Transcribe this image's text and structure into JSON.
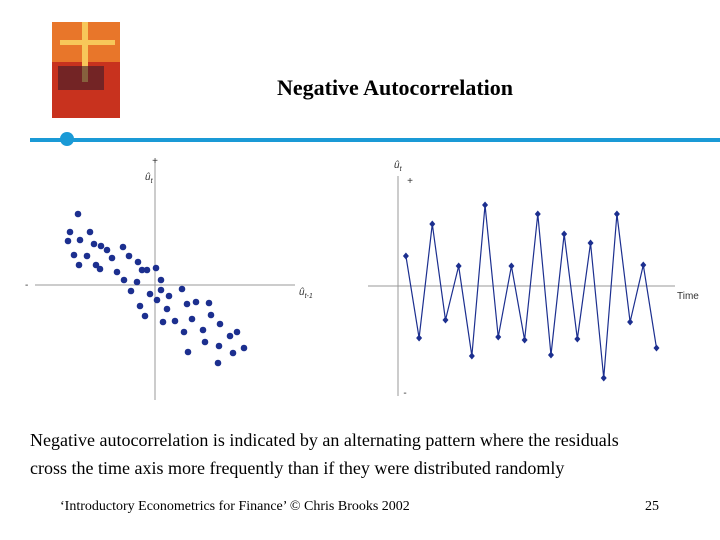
{
  "title": "Negative Autocorrelation",
  "body": [
    "Negative autocorrelation is indicated by an alternating pattern where the residuals",
    "cross the time axis more frequently than if they were distributed randomly"
  ],
  "footer": "‘Introductory Econometrics for Finance’ © Chris Brooks 2002",
  "page_number": "25",
  "chart_data": [
    {
      "type": "scatter",
      "color": "#1c2f8f",
      "ylabel": "û",
      "ylabel_sub": "t",
      "xlabel": "û",
      "xlabel_sub": "t-1",
      "plus_label": "+",
      "minus_label": "-",
      "xlim": [
        -13,
        15
      ],
      "ylim": [
        -11.5,
        12.5
      ],
      "x": [
        -7.7,
        -8.5,
        -6.5,
        -7.5,
        -5.4,
        -8.7,
        -8.1,
        -6.1,
        -6.8,
        -4.8,
        -3.2,
        -7.6,
        -5.9,
        -4.3,
        -2.6,
        -1.7,
        -3.8,
        -5.5,
        -1.3,
        -0.8,
        -3.1,
        -1.8,
        0.1,
        0.6,
        0.6,
        -0.5,
        0.2,
        -1.5,
        -1.0,
        1.4,
        2.7,
        1.2,
        3.2,
        4.1,
        5.4,
        2.0,
        3.7,
        5.6,
        2.9,
        4.8,
        6.5,
        8.2,
        3.3,
        5.0,
        6.4,
        7.5,
        8.9,
        6.3,
        7.8,
        0.8,
        -2.4
      ],
      "values": [
        7.1,
        5.3,
        5.3,
        4.5,
        3.9,
        4.4,
        3.0,
        4.1,
        2.9,
        3.5,
        3.8,
        2.0,
        2.0,
        2.7,
        2.9,
        2.3,
        1.3,
        1.6,
        1.5,
        1.5,
        0.5,
        0.3,
        1.7,
        0.5,
        -0.5,
        -0.9,
        -1.5,
        -2.1,
        -3.1,
        -1.1,
        -0.4,
        -2.4,
        -1.9,
        -1.7,
        -1.8,
        -3.6,
        -3.4,
        -3.0,
        -4.7,
        -4.5,
        -3.9,
        -4.7,
        -6.7,
        -5.7,
        -6.1,
        -5.1,
        -6.3,
        -7.8,
        -6.8,
        -3.7,
        -0.6
      ]
    },
    {
      "type": "line",
      "color": "#1c2f8f",
      "ylabel": "û",
      "ylabel_sub": "t",
      "xlabel": "Time",
      "plus_label": "+",
      "minus_label": "-",
      "xlim": [
        0.4,
        23.3
      ],
      "ylim": [
        -11,
        11
      ],
      "x": [
        1,
        2,
        3,
        4,
        5,
        6,
        7,
        8,
        9,
        10,
        11,
        12,
        13,
        14,
        15,
        16,
        17,
        18,
        19,
        20
      ],
      "values": [
        3.0,
        -5.2,
        6.2,
        -3.4,
        2.0,
        -7.0,
        8.1,
        -5.1,
        2.0,
        -5.4,
        7.2,
        -6.9,
        5.2,
        -5.3,
        4.3,
        -9.2,
        7.2,
        -3.6,
        2.1,
        -6.2
      ]
    }
  ]
}
